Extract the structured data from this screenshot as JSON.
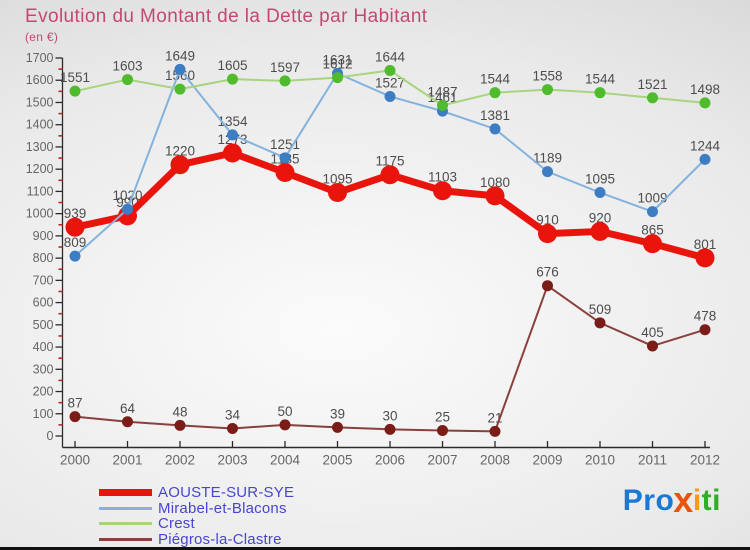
{
  "title": "Evolution du Montant de la Dette par Habitant",
  "subtitle": "(en €)",
  "chart_data": {
    "type": "line",
    "title": "Evolution du Montant de la Dette par Habitant",
    "unit_label": "(en €)",
    "x": [
      2000,
      2001,
      2002,
      2003,
      2004,
      2005,
      2006,
      2007,
      2008,
      2009,
      2010,
      2011,
      2012
    ],
    "series": [
      {
        "name": "AOUSTE-SUR-SYE",
        "line_color": "#e9150d",
        "dot_color": "#e9150d",
        "line_width": 7,
        "dot_radius": 9.5,
        "values": [
          939,
          990,
          1220,
          1273,
          1185,
          1095,
          1175,
          1103,
          1080,
          910,
          920,
          865,
          801
        ]
      },
      {
        "name": "Mirabel-et-Blacons",
        "line_color": "#84b2de",
        "dot_color": "#3c7dc3",
        "line_width": 2,
        "dot_radius": 5.5,
        "values": [
          809,
          1020,
          1649,
          1354,
          1251,
          1631,
          1527,
          1461,
          1381,
          1189,
          1095,
          1009,
          1244
        ]
      },
      {
        "name": "Crest",
        "line_color": "#a6d57d",
        "dot_color": "#4fbb2d",
        "line_width": 2,
        "dot_radius": 5.5,
        "values": [
          1551,
          1603,
          1560,
          1605,
          1597,
          1612,
          1644,
          1487,
          1544,
          1558,
          1544,
          1521,
          1498
        ]
      },
      {
        "name": "Piégros-la-Clastre",
        "line_color": "#8a403c",
        "dot_color": "#7a1d18",
        "line_width": 2,
        "dot_radius": 5.5,
        "values": [
          87,
          64,
          48,
          34,
          50,
          39,
          30,
          25,
          21,
          676,
          509,
          405,
          478
        ]
      }
    ],
    "ylim": [
      0,
      1700
    ],
    "ytick_step": 100,
    "grid": false,
    "legend_position": "bottom-left",
    "label_color": "#4d4d4d",
    "axis_color": "#2b2b2b",
    "tick_label_color": "#666666",
    "minor_tick_color": "#c0251f"
  },
  "logo": {
    "parts": [
      {
        "text": "Pro",
        "color": "#1a79d4",
        "big": false
      },
      {
        "text": "x",
        "color": "#e8530e",
        "big": true
      },
      {
        "text": "i",
        "color": "#f59a1d",
        "big": false
      },
      {
        "text": "ti",
        "color": "#2fae28",
        "big": false
      }
    ]
  }
}
